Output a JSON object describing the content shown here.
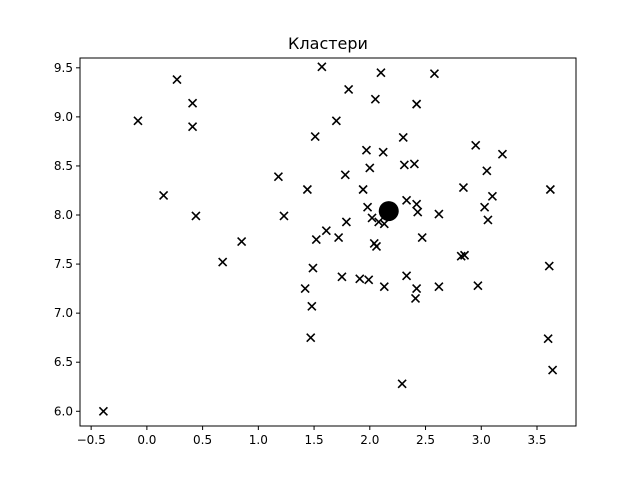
{
  "chart_data": {
    "type": "scatter",
    "title": "Кластери",
    "xlabel": "",
    "ylabel": "",
    "xlim": [
      -0.6,
      3.85
    ],
    "ylim": [
      5.85,
      9.6
    ],
    "xticks": [
      -0.5,
      0.0,
      0.5,
      1.0,
      1.5,
      2.0,
      2.5,
      3.0,
      3.5
    ],
    "xtick_labels": [
      "−0.5",
      "0.0",
      "0.5",
      "1.0",
      "1.5",
      "2.0",
      "2.5",
      "3.0",
      "3.5"
    ],
    "yticks": [
      6.0,
      6.5,
      7.0,
      7.5,
      8.0,
      8.5,
      9.0,
      9.5
    ],
    "ytick_labels": [
      "6.0",
      "6.5",
      "7.0",
      "7.5",
      "8.0",
      "8.5",
      "9.0",
      "9.5"
    ],
    "grid": false,
    "colors": {
      "points": "#000000",
      "axes": "#000000",
      "background": "#ffffff"
    },
    "series": [
      {
        "marker": "x",
        "points": [
          [
            -0.39,
            6.0
          ],
          [
            -0.08,
            8.96
          ],
          [
            0.15,
            8.2
          ],
          [
            0.27,
            9.38
          ],
          [
            0.41,
            9.14
          ],
          [
            0.41,
            8.9
          ],
          [
            0.44,
            7.99
          ],
          [
            0.68,
            7.52
          ],
          [
            0.85,
            7.73
          ],
          [
            1.18,
            8.39
          ],
          [
            1.23,
            7.99
          ],
          [
            1.42,
            7.25
          ],
          [
            1.44,
            8.26
          ],
          [
            1.48,
            7.07
          ],
          [
            1.47,
            6.75
          ],
          [
            1.49,
            7.46
          ],
          [
            1.51,
            8.8
          ],
          [
            1.52,
            7.75
          ],
          [
            1.57,
            9.51
          ],
          [
            1.61,
            7.84
          ],
          [
            1.7,
            8.96
          ],
          [
            1.72,
            7.77
          ],
          [
            1.75,
            7.37
          ],
          [
            1.78,
            8.41
          ],
          [
            1.79,
            7.93
          ],
          [
            1.81,
            9.28
          ],
          [
            1.91,
            7.35
          ],
          [
            1.94,
            8.26
          ],
          [
            1.97,
            8.66
          ],
          [
            1.98,
            8.08
          ],
          [
            1.99,
            7.34
          ],
          [
            2.0,
            8.48
          ],
          [
            2.02,
            7.97
          ],
          [
            2.04,
            7.71
          ],
          [
            2.05,
            9.18
          ],
          [
            2.06,
            7.68
          ],
          [
            2.08,
            7.93
          ],
          [
            2.1,
            9.45
          ],
          [
            2.12,
            8.64
          ],
          [
            2.13,
            7.27
          ],
          [
            2.13,
            7.91
          ],
          [
            2.29,
            6.28
          ],
          [
            2.3,
            8.79
          ],
          [
            2.31,
            8.51
          ],
          [
            2.33,
            8.15
          ],
          [
            2.33,
            7.38
          ],
          [
            2.4,
            8.52
          ],
          [
            2.41,
            7.15
          ],
          [
            2.42,
            7.25
          ],
          [
            2.42,
            9.13
          ],
          [
            2.42,
            8.11
          ],
          [
            2.43,
            8.03
          ],
          [
            2.47,
            7.77
          ],
          [
            2.58,
            9.44
          ],
          [
            2.62,
            8.01
          ],
          [
            2.62,
            7.27
          ],
          [
            2.82,
            7.58
          ],
          [
            2.84,
            8.28
          ],
          [
            2.85,
            7.59
          ],
          [
            2.95,
            8.71
          ],
          [
            2.97,
            7.28
          ],
          [
            3.03,
            8.08
          ],
          [
            3.05,
            8.45
          ],
          [
            3.06,
            7.95
          ],
          [
            3.1,
            8.19
          ],
          [
            3.19,
            8.62
          ],
          [
            3.6,
            6.74
          ],
          [
            3.61,
            7.48
          ],
          [
            3.62,
            8.26
          ],
          [
            3.64,
            6.42
          ]
        ]
      },
      {
        "marker": "circle",
        "points": [
          [
            2.17,
            8.04
          ]
        ]
      }
    ]
  }
}
